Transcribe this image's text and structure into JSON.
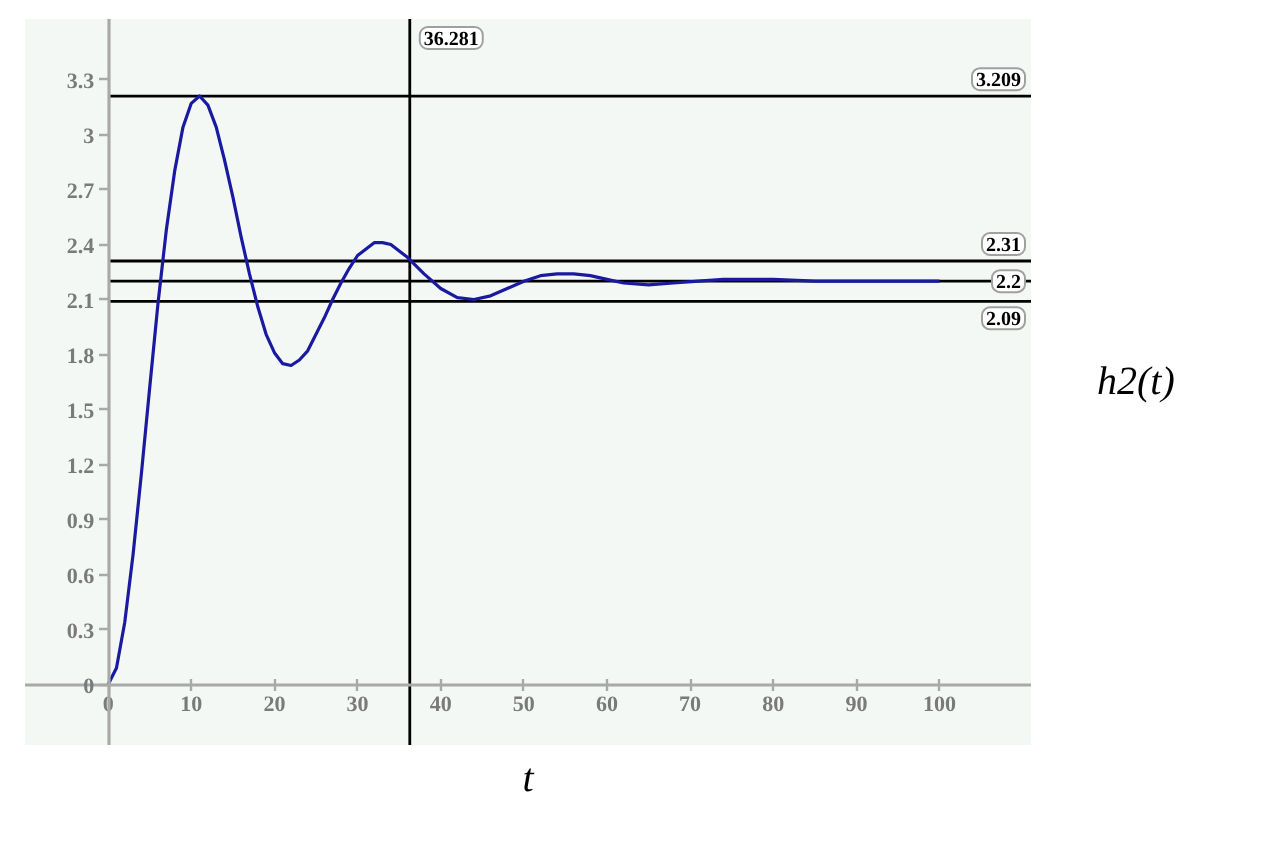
{
  "chart_data": {
    "type": "line",
    "xlabel": "t",
    "ylabel": "h2(t)",
    "x": [
      0,
      1,
      2,
      3,
      4,
      5,
      6,
      7,
      8,
      9,
      10,
      11,
      12,
      13,
      14,
      15,
      16,
      17,
      18,
      19,
      20,
      21,
      22,
      23,
      24,
      25,
      26,
      27,
      28,
      29,
      30,
      32,
      33,
      34,
      36,
      38,
      40,
      42,
      44,
      46,
      48,
      50,
      52,
      54,
      56,
      58,
      60,
      62,
      65,
      68,
      71,
      74,
      77,
      80,
      85,
      90,
      95,
      100
    ],
    "series": [
      {
        "color": "#1a1aa0",
        "values": [
          0,
          0.09,
          0.34,
          0.71,
          1.15,
          1.62,
          2.08,
          2.48,
          2.8,
          3.04,
          3.17,
          3.21,
          3.16,
          3.04,
          2.86,
          2.66,
          2.44,
          2.24,
          2.06,
          1.91,
          1.81,
          1.75,
          1.74,
          1.77,
          1.82,
          1.91,
          2.0,
          2.1,
          2.19,
          2.27,
          2.34,
          2.41,
          2.41,
          2.4,
          2.33,
          2.24,
          2.16,
          2.11,
          2.1,
          2.12,
          2.16,
          2.2,
          2.23,
          2.24,
          2.24,
          2.23,
          2.21,
          2.19,
          2.18,
          2.19,
          2.2,
          2.21,
          2.21,
          2.21,
          2.2,
          2.2,
          2.2,
          2.2
        ]
      }
    ],
    "xlim": [
      -10,
      111
    ],
    "ylim": [
      -0.33,
      3.63
    ],
    "xticks": [
      0,
      10,
      20,
      30,
      40,
      50,
      60,
      70,
      80,
      90,
      100
    ],
    "yticks": [
      0,
      0.3,
      0.6,
      0.9,
      1.2,
      1.5,
      1.8,
      2.1,
      2.4,
      2.7,
      3,
      3.3
    ],
    "ref_lines": [
      {
        "axis": "y",
        "value": 3.209,
        "label": "3.209",
        "color": "#000000"
      },
      {
        "axis": "y",
        "value": 2.31,
        "label": "2.31",
        "color": "#000000"
      },
      {
        "axis": "y",
        "value": 2.2,
        "label": "2.2",
        "color": "#000000"
      },
      {
        "axis": "y",
        "value": 2.09,
        "label": "2.09",
        "color": "#000000"
      },
      {
        "axis": "x",
        "value": 36.281,
        "label": "36.281",
        "color": "#000000"
      }
    ]
  }
}
